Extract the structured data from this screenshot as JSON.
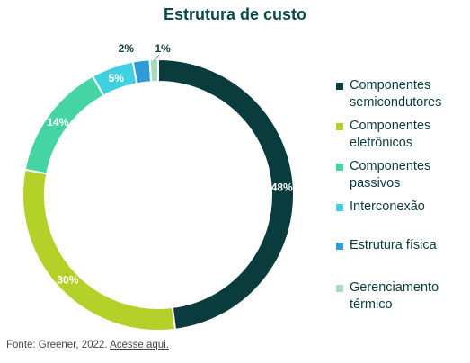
{
  "chart_data": {
    "type": "pie",
    "style": "donut",
    "title": "Estrutura de custo",
    "categories": [
      "Componentes semicondutores",
      "Componentes eletrônicos",
      "Componentes passivos",
      "Interconexão",
      "Estrutura física",
      "Gerenciamento térmico"
    ],
    "values": [
      48,
      30,
      14,
      5,
      2,
      1
    ],
    "value_labels": [
      "48%",
      "30%",
      "14%",
      "5%",
      "2%",
      "1%"
    ],
    "colors": [
      "#0a3b3d",
      "#b4d12a",
      "#45d4a3",
      "#3fd0e2",
      "#2f9bd6",
      "#a8dcbc"
    ],
    "legend_position": "right"
  },
  "source": {
    "prefix": "Fonte: Greener, 2022.",
    "link_text": "Acesse aqui."
  }
}
